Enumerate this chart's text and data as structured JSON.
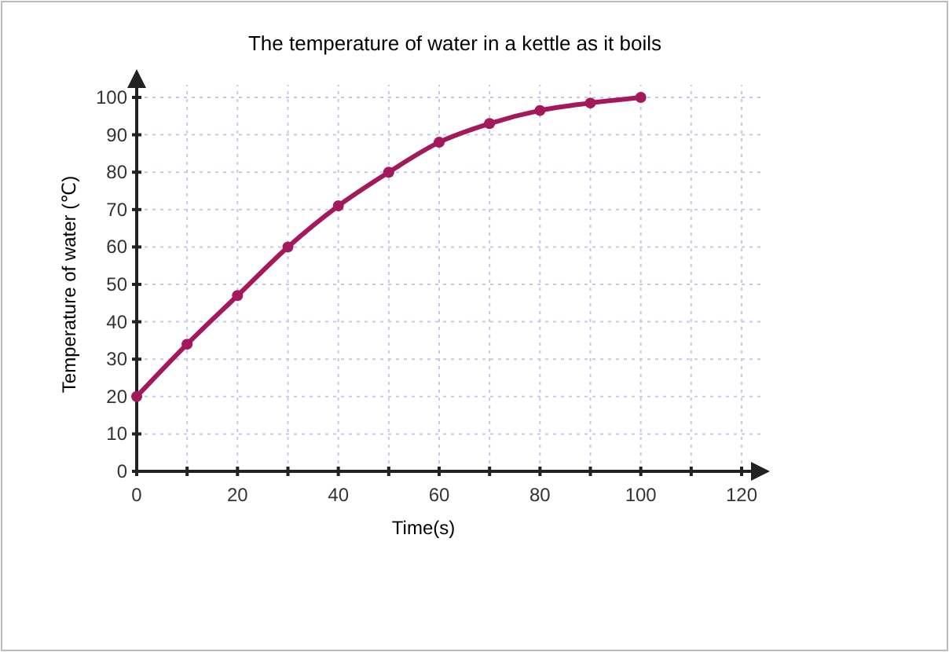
{
  "chart_data": {
    "type": "line",
    "title": "The temperature of water in a kettle as it boils",
    "xlabel": "Time(s)",
    "ylabel": "Temperature of water (℃)",
    "x": [
      0,
      10,
      20,
      30,
      40,
      50,
      60,
      70,
      80,
      90,
      100
    ],
    "series": [
      {
        "color": "#a3195b",
        "values": [
          20,
          34,
          47,
          60,
          71,
          80,
          88,
          93,
          96.5,
          98.5,
          100
        ]
      }
    ],
    "xlim": [
      0,
      120
    ],
    "xticks": [
      0,
      {
        "value": 10,
        "label": null
      },
      20,
      {
        "value": 30,
        "label": null
      },
      40,
      {
        "value": 50,
        "label": null
      },
      60,
      {
        "value": 70,
        "label": null
      },
      80,
      {
        "value": 90,
        "label": null
      },
      100,
      {
        "value": 110,
        "label": null
      },
      120
    ],
    "ylim": [
      0,
      100
    ],
    "yticks": [
      0,
      10,
      20,
      30,
      40,
      50,
      60,
      70,
      80,
      90,
      100
    ],
    "grid": true,
    "marker": "circle",
    "line_style": "solid"
  }
}
